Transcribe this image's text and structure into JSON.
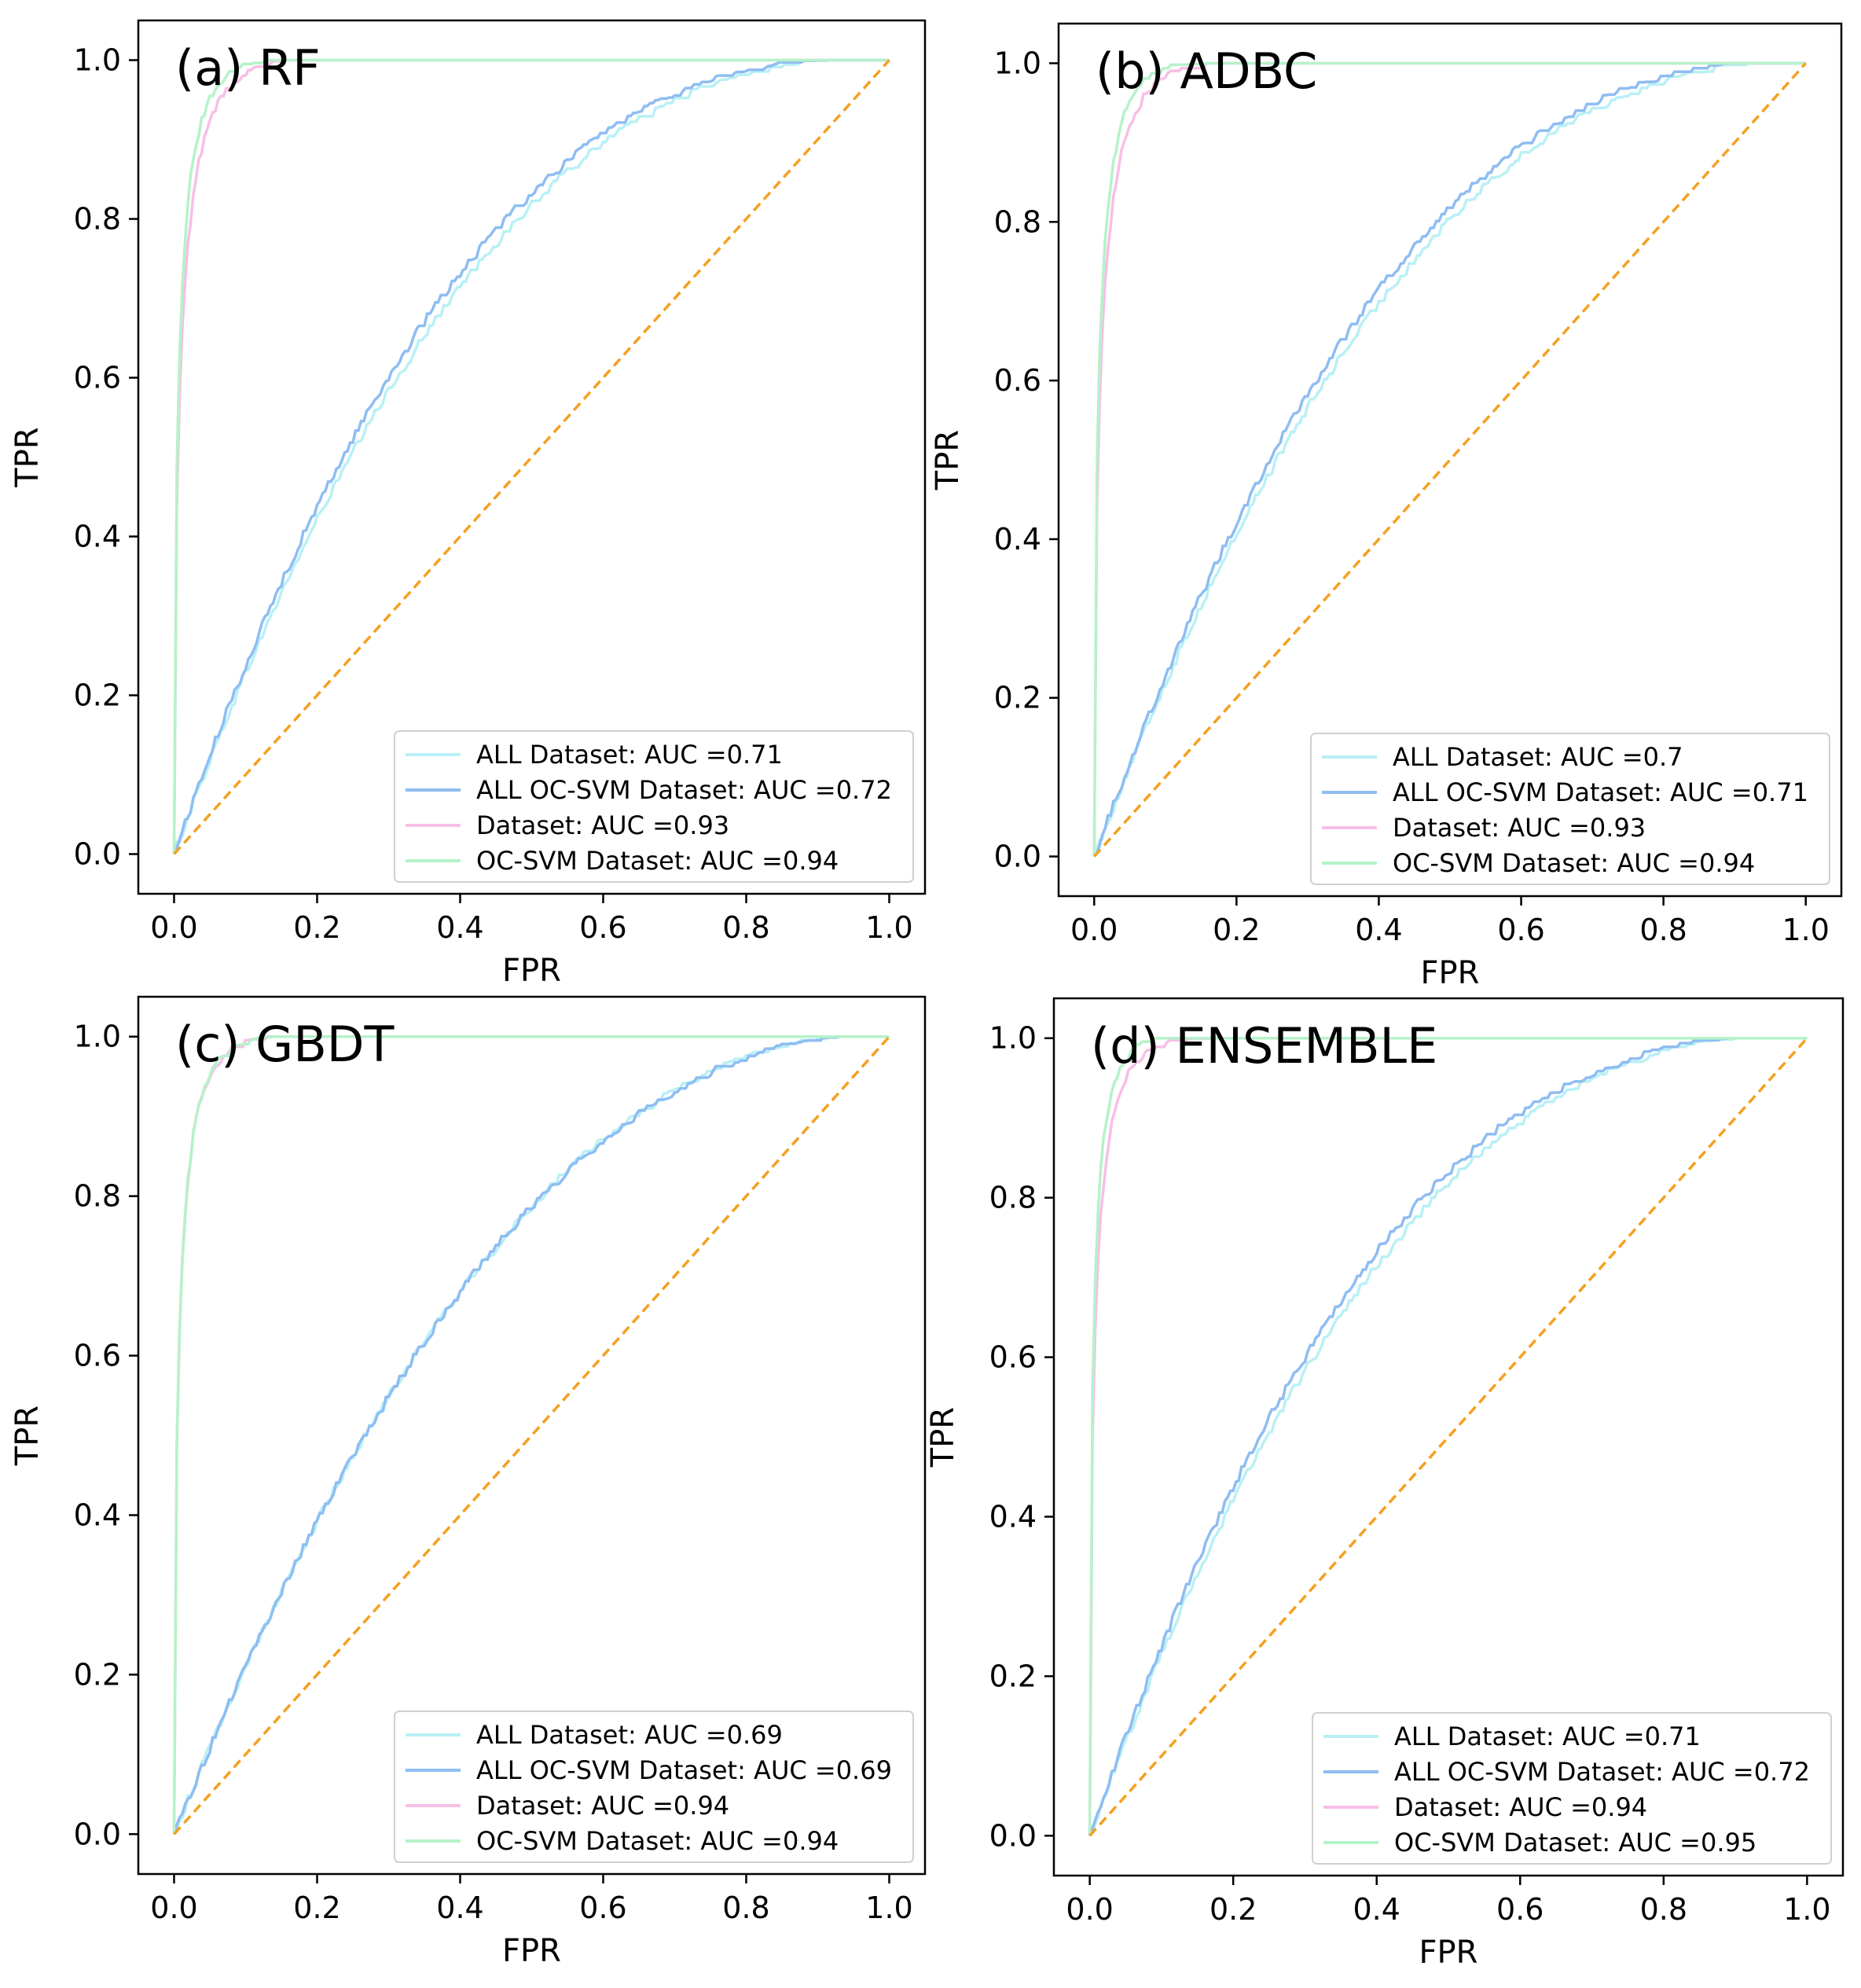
{
  "colors": {
    "all_dataset": "#b9f0f5",
    "all_ocsvm_dataset": "#8ebdf2",
    "dataset": "#f7bfe6",
    "ocsvm_dataset": "#b6f2c9",
    "chance": "#f5a020"
  },
  "chart_data": [
    {
      "type": "line",
      "title": "(a) RF",
      "xlabel": "FPR",
      "ylabel": "TPR",
      "xlim": [
        -0.05,
        1.05
      ],
      "ylim": [
        -0.05,
        1.05
      ],
      "xticks": [
        "0.0",
        "0.2",
        "0.4",
        "0.6",
        "0.8",
        "1.0"
      ],
      "yticks": [
        "0.0",
        "0.2",
        "0.4",
        "0.6",
        "0.8",
        "1.0"
      ],
      "legend_position": "lower-right",
      "series": [
        {
          "name": "ALL Dataset: AUC =0.71",
          "key": "all_dataset",
          "auc": 0.71
        },
        {
          "name": "ALL OC-SVM Dataset: AUC =0.72",
          "key": "all_ocsvm_dataset",
          "auc": 0.72
        },
        {
          "name": "Dataset: AUC =0.93",
          "key": "dataset",
          "auc": 0.93
        },
        {
          "name": "OC-SVM Dataset: AUC =0.94",
          "key": "ocsvm_dataset",
          "auc": 0.94
        }
      ],
      "chance_line": {
        "x": [
          0,
          1
        ],
        "y": [
          0,
          1
        ]
      }
    },
    {
      "type": "line",
      "title": "(b) ADBC",
      "xlabel": "FPR",
      "ylabel": "TPR",
      "xlim": [
        -0.05,
        1.05
      ],
      "ylim": [
        -0.05,
        1.05
      ],
      "xticks": [
        "0.0",
        "0.2",
        "0.4",
        "0.6",
        "0.8",
        "1.0"
      ],
      "yticks": [
        "0.0",
        "0.2",
        "0.4",
        "0.6",
        "0.8",
        "1.0"
      ],
      "legend_position": "lower-right",
      "series": [
        {
          "name": "ALL Dataset: AUC =0.7",
          "key": "all_dataset",
          "auc": 0.7
        },
        {
          "name": "ALL OC-SVM Dataset: AUC =0.71",
          "key": "all_ocsvm_dataset",
          "auc": 0.71
        },
        {
          "name": "Dataset: AUC =0.93",
          "key": "dataset",
          "auc": 0.93
        },
        {
          "name": "OC-SVM Dataset: AUC =0.94",
          "key": "ocsvm_dataset",
          "auc": 0.94
        }
      ],
      "chance_line": {
        "x": [
          0,
          1
        ],
        "y": [
          0,
          1
        ]
      }
    },
    {
      "type": "line",
      "title": "(c) GBDT",
      "xlabel": "FPR",
      "ylabel": "TPR",
      "xlim": [
        -0.05,
        1.05
      ],
      "ylim": [
        -0.05,
        1.05
      ],
      "xticks": [
        "0.0",
        "0.2",
        "0.4",
        "0.6",
        "0.8",
        "1.0"
      ],
      "yticks": [
        "0.0",
        "0.2",
        "0.4",
        "0.6",
        "0.8",
        "1.0"
      ],
      "legend_position": "lower-right",
      "series": [
        {
          "name": "ALL Dataset: AUC =0.69",
          "key": "all_dataset",
          "auc": 0.69
        },
        {
          "name": "ALL OC-SVM Dataset: AUC =0.69",
          "key": "all_ocsvm_dataset",
          "auc": 0.69
        },
        {
          "name": "Dataset: AUC =0.94",
          "key": "dataset",
          "auc": 0.94
        },
        {
          "name": "OC-SVM Dataset: AUC =0.94",
          "key": "ocsvm_dataset",
          "auc": 0.94
        }
      ],
      "chance_line": {
        "x": [
          0,
          1
        ],
        "y": [
          0,
          1
        ]
      }
    },
    {
      "type": "line",
      "title": "(d) ENSEMBLE",
      "xlabel": "FPR",
      "ylabel": "TPR",
      "xlim": [
        -0.05,
        1.05
      ],
      "ylim": [
        -0.05,
        1.05
      ],
      "xticks": [
        "0.0",
        "0.2",
        "0.4",
        "0.6",
        "0.8",
        "1.0"
      ],
      "yticks": [
        "0.0",
        "0.2",
        "0.4",
        "0.6",
        "0.8",
        "1.0"
      ],
      "legend_position": "lower-right",
      "series": [
        {
          "name": "ALL Dataset: AUC =0.71",
          "key": "all_dataset",
          "auc": 0.71
        },
        {
          "name": "ALL OC-SVM Dataset: AUC =0.72",
          "key": "all_ocsvm_dataset",
          "auc": 0.72
        },
        {
          "name": "Dataset: AUC =0.94",
          "key": "dataset",
          "auc": 0.94
        },
        {
          "name": "OC-SVM Dataset: AUC =0.95",
          "key": "ocsvm_dataset",
          "auc": 0.95
        }
      ],
      "chance_line": {
        "x": [
          0,
          1
        ],
        "y": [
          0,
          1
        ]
      }
    }
  ]
}
